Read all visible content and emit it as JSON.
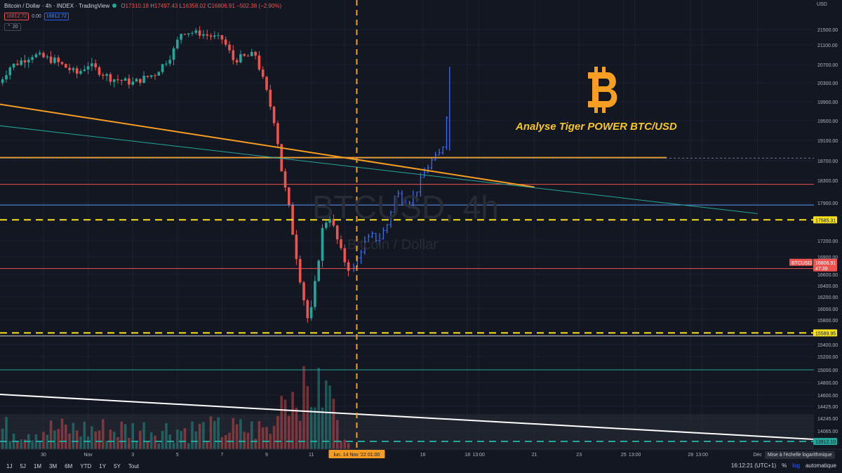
{
  "legend": {
    "title": "Bitcoin / Dollar · 4h · INDEX · TradingView",
    "o_label": "O",
    "o": "17310.18",
    "h_label": "H",
    "h": "17497.43",
    "l_label": "L",
    "l": "16358.02",
    "c_label": "C",
    "c": "16806.91",
    "change": "−502.38 (−2.90%)",
    "bid": "16812.72",
    "spread": "0.00",
    "ask": "16812.72",
    "volume_label": "20"
  },
  "watermark": {
    "symbol": "BTCUSD, 4h",
    "name": "Bitcoin / Dollar"
  },
  "annotation": {
    "title": "Analyse Tiger POWER BTC/USD"
  },
  "currency": "USD",
  "colors": {
    "up": "#26a69a",
    "down": "#ef5350",
    "projection": "#3d6cf2",
    "orange": "#f59e23",
    "yellow": "#f7e11a"
  },
  "toolbar": {
    "timeframes": [
      "1J",
      "5J",
      "1M",
      "3M",
      "6M",
      "YTD",
      "1Y",
      "5Y",
      "Tout"
    ],
    "clock": "16:12:21 (UTC+1)",
    "percent": "%",
    "log": "log",
    "auto": "automatique",
    "tooltip": "Mise à l'échelle logarithmique"
  },
  "chart_data": {
    "type": "candlestick",
    "title": "Bitcoin / Dollar · 4h · INDEX · TradingView",
    "yaxis": {
      "ticks": [
        21500,
        21100,
        20700,
        20300,
        19900,
        19500,
        19100,
        18700,
        18300,
        17900,
        17200,
        16900,
        16600,
        16400,
        16200,
        16000,
        15800,
        15400,
        15200,
        15000,
        14800,
        14600,
        14425,
        14245,
        14065
      ],
      "tick_labels": [
        "21500.00",
        "21100.00",
        "20700.00",
        "20300.00",
        "19900.00",
        "19500.00",
        "19100.00",
        "18700.00",
        "18300.00",
        "17900.00",
        "17200.00",
        "16900.00",
        "16600.00",
        "16400.00",
        "16200.00",
        "16000.00",
        "15800.00",
        "15400.00",
        "15200.00",
        "15000.00",
        "14800.00",
        "14600.00",
        "14425.00",
        "14245.00",
        "14065.00"
      ],
      "badges": [
        {
          "label": "17585.31",
          "value": 17585.31,
          "color": "#f7e11a"
        },
        {
          "label": "15589.95",
          "value": 15589.95,
          "color": "#f7e11a"
        },
        {
          "label": "13912.10",
          "value": 13912.1,
          "color": "#26a69a"
        },
        {
          "label": "BTCUSD",
          "value": 16806.91,
          "color": "#ef5350"
        },
        {
          "label": "16806.91",
          "value": 16806.91,
          "color": "#ef5350"
        },
        {
          "label": "47:39",
          "value": 16806.91,
          "color": "#ef5350"
        }
      ]
    },
    "xaxis": {
      "ticks": [
        {
          "label": "30",
          "day": 30
        },
        {
          "label": "Nov",
          "day": 32
        },
        {
          "label": "3",
          "day": 34
        },
        {
          "label": "5",
          "day": 36
        },
        {
          "label": "7",
          "day": 38
        },
        {
          "label": "9",
          "day": 40
        },
        {
          "label": "11",
          "day": 42
        },
        {
          "label": "13:00",
          "day": 43.5
        },
        {
          "label": "16",
          "day": 47
        },
        {
          "label": "18",
          "day": 49
        },
        {
          "label": "13:00",
          "day": 49.5
        },
        {
          "label": "21",
          "day": 52
        },
        {
          "label": "23",
          "day": 54
        },
        {
          "label": "25",
          "day": 56
        },
        {
          "label": "13:00",
          "day": 56.5
        },
        {
          "label": "28",
          "day": 59
        },
        {
          "label": "13:00",
          "day": 59.5
        },
        {
          "label": "Déc",
          "day": 62
        }
      ],
      "cursor_label": "lun. 14 Nov '22   01:00",
      "cursor_day": 44.04
    },
    "candles_keypoints_day_close": [
      [
        28.0,
        20300
      ],
      [
        28.5,
        20650
      ],
      [
        29.5,
        20900
      ],
      [
        30.5,
        20780
      ],
      [
        31.5,
        20500
      ],
      [
        32.0,
        20700
      ],
      [
        33.0,
        20400
      ],
      [
        34.0,
        20300
      ],
      [
        35.0,
        20500
      ],
      [
        35.8,
        20950
      ],
      [
        36.2,
        21450
      ],
      [
        37.0,
        21400
      ],
      [
        38.0,
        21250
      ],
      [
        38.5,
        20800
      ],
      [
        39.5,
        20900
      ],
      [
        40.0,
        20100
      ],
      [
        40.4,
        19400
      ],
      [
        40.7,
        18400
      ],
      [
        41.0,
        17800
      ],
      [
        41.3,
        17000
      ],
      [
        41.6,
        16300
      ],
      [
        41.9,
        15700
      ],
      [
        42.2,
        16500
      ],
      [
        42.5,
        17400
      ],
      [
        42.8,
        17700
      ],
      [
        43.1,
        17300
      ],
      [
        43.4,
        16900
      ],
      [
        43.7,
        16700
      ]
    ],
    "projection_keypoints_day_close": [
      [
        43.9,
        16700
      ],
      [
        44.3,
        17100
      ],
      [
        44.7,
        17300
      ],
      [
        45.0,
        17200
      ],
      [
        45.4,
        17500
      ],
      [
        45.8,
        18100
      ],
      [
        46.2,
        17900
      ],
      [
        46.6,
        18000
      ],
      [
        47.0,
        18400
      ],
      [
        47.4,
        18700
      ],
      [
        47.7,
        18800
      ],
      [
        48.0,
        19100
      ],
      [
        48.2,
        20650
      ]
    ],
    "horizontal_lines": [
      {
        "value": 18760,
        "color": "#f59e23",
        "style": "solid"
      },
      {
        "value": 18230,
        "color": "#ef5350",
        "style": "solid"
      },
      {
        "value": 17860,
        "color": "#5b9cf6",
        "style": "solid"
      },
      {
        "value": 17585.31,
        "color": "#f7e11a",
        "style": "dashed"
      },
      {
        "value": 15589.95,
        "color": "#f7e11a",
        "style": "dashed"
      },
      {
        "value": 16700,
        "color": "#ef5350",
        "style": "solid"
      },
      {
        "value": 15000,
        "color": "#26a69a",
        "style": "solid"
      },
      {
        "value": 15540,
        "color": "#d1d4dc",
        "style": "solid"
      },
      {
        "value": 18750,
        "color": "#787b86",
        "style": "dotted"
      }
    ],
    "trendlines": [
      {
        "from": [
          28.0,
          19850
        ],
        "to": [
          52.0,
          18180
        ],
        "color": "#f59e23"
      },
      {
        "from": [
          28.0,
          19400
        ],
        "to": [
          62.0,
          17700
        ],
        "color": "#26a69a"
      }
    ],
    "volume": {
      "note": "volume bars in lower pane",
      "ma_color": "#5b9cf6"
    },
    "grid": true
  }
}
